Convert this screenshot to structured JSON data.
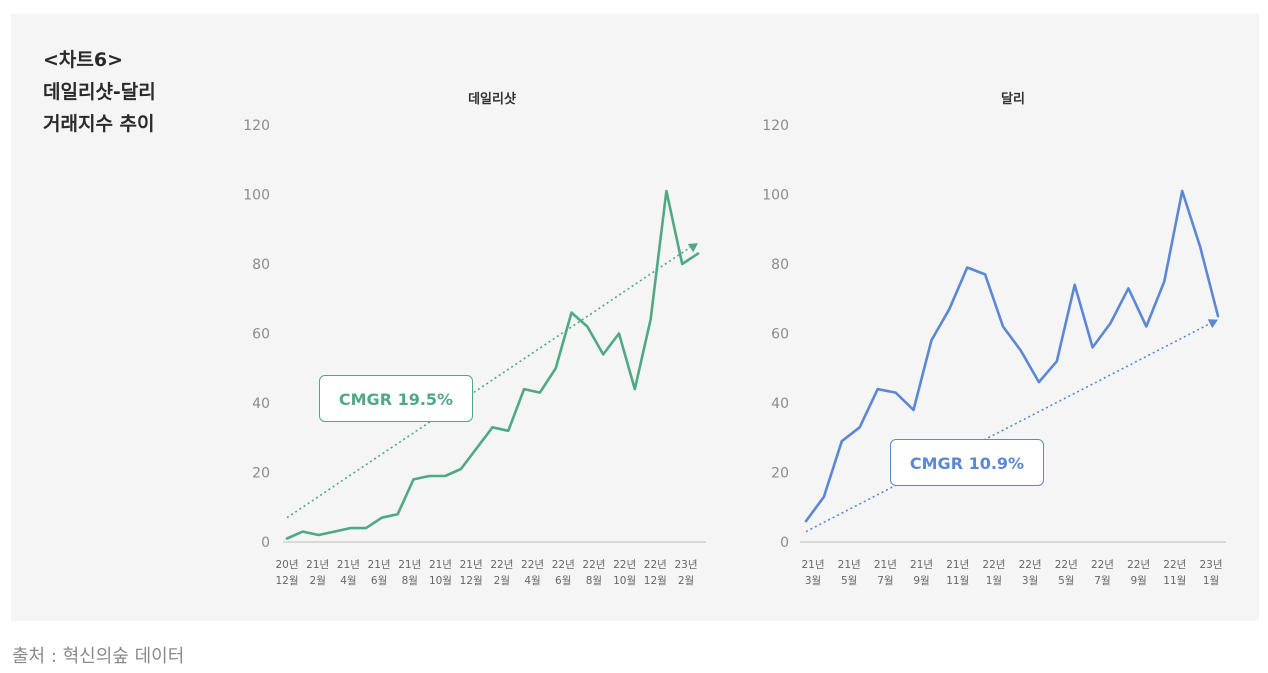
{
  "heading": {
    "tag": "<차트6>",
    "line1": "데일리샷-달리",
    "line2": "거래지수 추이"
  },
  "source": "출처 : 혁신의숲 데이터",
  "colors": {
    "daily": "#4fa886",
    "dali": "#5b87d6"
  },
  "chart_data": [
    {
      "type": "line",
      "title": "데일리샷",
      "ylim": [
        0,
        120
      ],
      "yticks": [
        0,
        20,
        40,
        60,
        80,
        100,
        120
      ],
      "x_labels": [
        [
          "20년",
          "12월"
        ],
        [
          "21년",
          "2월"
        ],
        [
          "21년",
          "4월"
        ],
        [
          "21년",
          "6월"
        ],
        [
          "21년",
          "8월"
        ],
        [
          "21년",
          "10월"
        ],
        [
          "21년",
          "12월"
        ],
        [
          "22년",
          "2월"
        ],
        [
          "22년",
          "4월"
        ],
        [
          "22년",
          "6월"
        ],
        [
          "22년",
          "8월"
        ],
        [
          "22년",
          "10월"
        ],
        [
          "22년",
          "12월"
        ],
        [
          "23년",
          "2월"
        ]
      ],
      "values": [
        1,
        3,
        2,
        3,
        4,
        4,
        7,
        8,
        18,
        19,
        19,
        21,
        27,
        33,
        32,
        44,
        43,
        50,
        66,
        62,
        54,
        60,
        44,
        64,
        101,
        80,
        83
      ],
      "trend": {
        "label": "CMGR 19.5%",
        "start": 7,
        "end": 86
      }
    },
    {
      "type": "line",
      "title": "달리",
      "ylim": [
        0,
        120
      ],
      "yticks": [
        0,
        20,
        40,
        60,
        80,
        100,
        120
      ],
      "x_labels": [
        [
          "21년",
          "3월"
        ],
        [
          "21년",
          "5월"
        ],
        [
          "21년",
          "7월"
        ],
        [
          "21년",
          "9월"
        ],
        [
          "21년",
          "11월"
        ],
        [
          "22년",
          "1월"
        ],
        [
          "22년",
          "3월"
        ],
        [
          "22년",
          "5월"
        ],
        [
          "22년",
          "7월"
        ],
        [
          "22년",
          "9월"
        ],
        [
          "22년",
          "11월"
        ],
        [
          "23년",
          "1월"
        ]
      ],
      "values": [
        6,
        13,
        29,
        33,
        44,
        43,
        38,
        58,
        67,
        79,
        77,
        62,
        55,
        46,
        52,
        74,
        56,
        63,
        73,
        62,
        75,
        101,
        85,
        65
      ],
      "trend": {
        "label": "CMGR 10.9%",
        "start": 3,
        "end": 64
      }
    }
  ]
}
